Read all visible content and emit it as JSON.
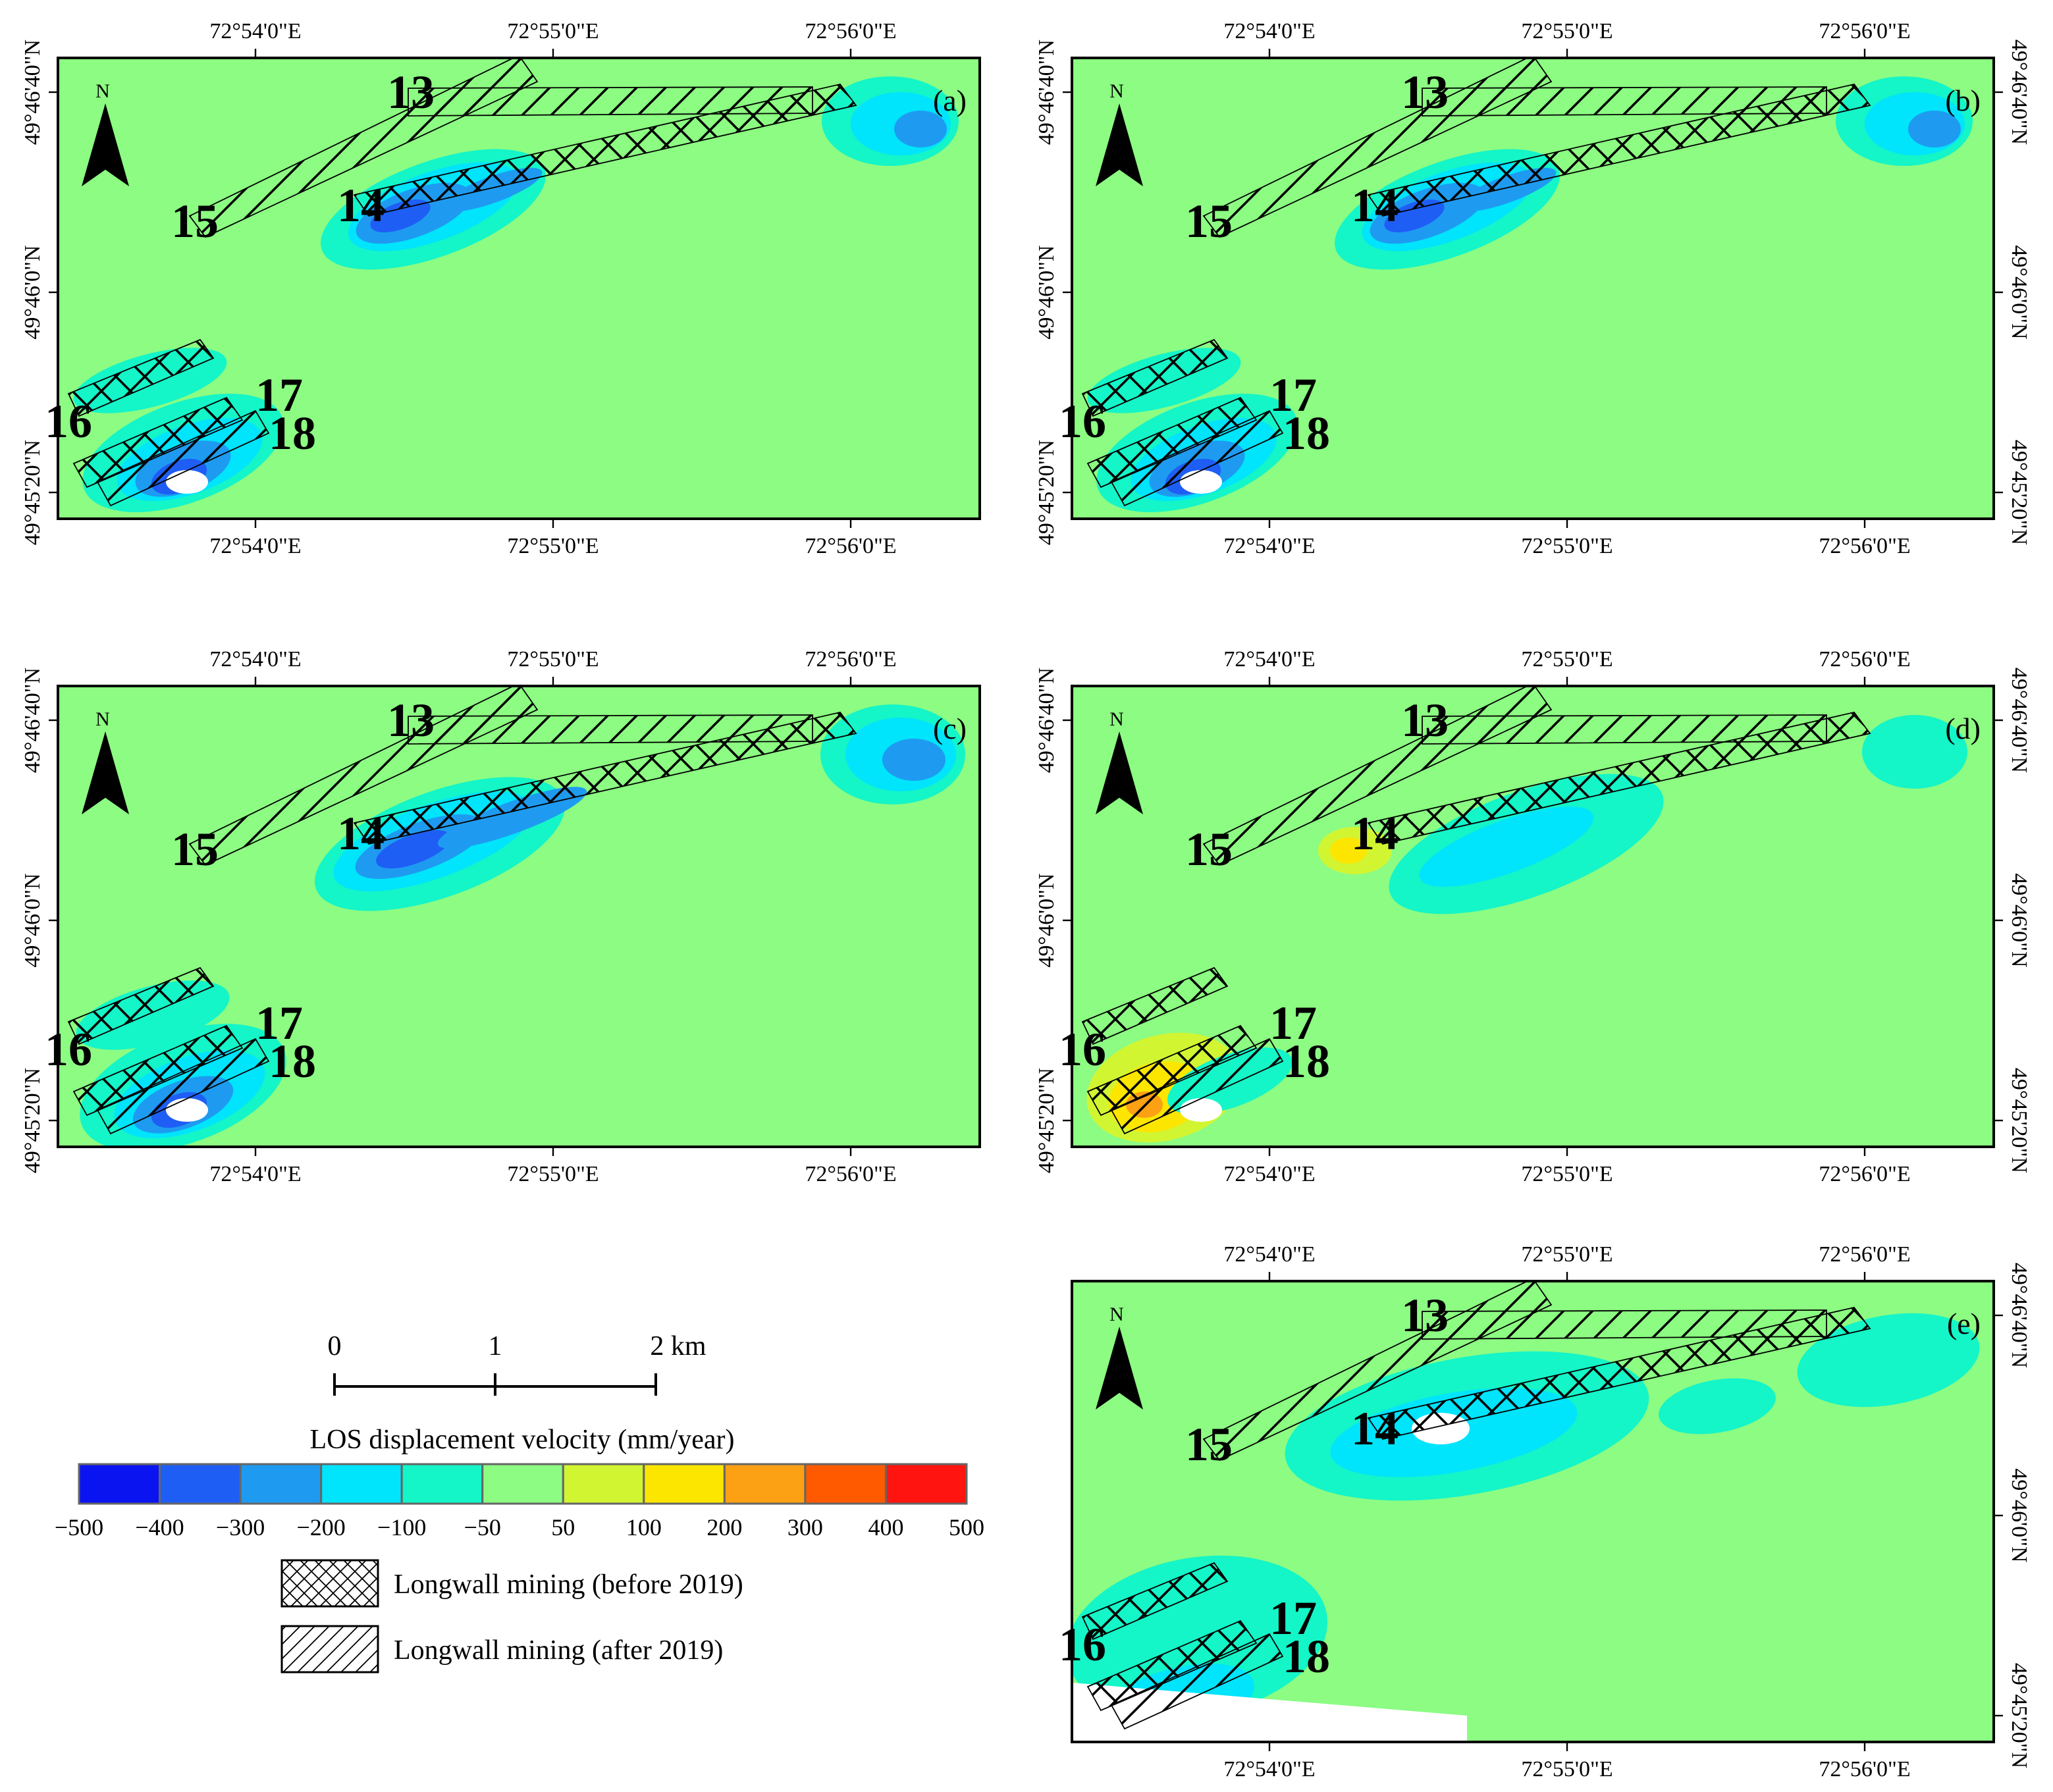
{
  "colors": {
    "background": "#8cfc82",
    "bin_colors": [
      "#0a14f0",
      "#1e5ef5",
      "#1e9bf0",
      "#00e4fc",
      "#14f5c8",
      "#8cfc82",
      "#d2f532",
      "#fce600",
      "#fca014",
      "#ff5a00",
      "#ff1410"
    ],
    "nodata": "#ffffff"
  },
  "axes": {
    "lon_ticks": [
      "72°54'0\"E",
      "72°55'0\"E",
      "72°56'0\"E"
    ],
    "lat_ticks": [
      "49°46'40\"N",
      "49°46'0\"N",
      "49°45'20\"N"
    ],
    "lat_ticks_duplicate_right": [
      "49°46'40\"N",
      "49°46'0\"N",
      "49°45'20\"N"
    ]
  },
  "north_arrow": {
    "label": "N"
  },
  "panels": [
    {
      "id": "a",
      "label": "(a)"
    },
    {
      "id": "b",
      "label": "(b)"
    },
    {
      "id": "c",
      "label": "(c)"
    },
    {
      "id": "d",
      "label": "(d)"
    },
    {
      "id": "e",
      "label": "(e)"
    }
  ],
  "longwall_panels": [
    "13",
    "14",
    "15",
    "16",
    "17",
    "18"
  ],
  "legend": {
    "scale_bar": {
      "ticks": [
        "0",
        "1",
        "2 km"
      ]
    },
    "colorbar": {
      "title": "LOS displacement velocity (mm/year)",
      "tick_labels": [
        "−500",
        "−400",
        "−300",
        "−200",
        "−100",
        "−50",
        "50",
        "100",
        "200",
        "300",
        "400",
        "500"
      ]
    },
    "hatch_before": "Longwall mining (before 2019)",
    "hatch_after": "Longwall mining (after 2019)"
  }
}
